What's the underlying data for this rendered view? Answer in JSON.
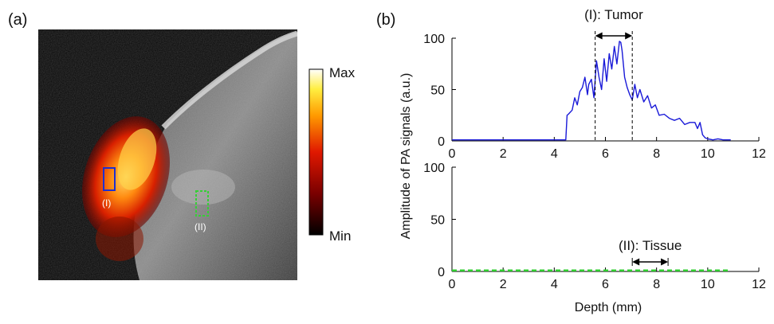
{
  "panel_a": {
    "label": "(a)",
    "colorbar": {
      "max_label": "Max",
      "min_label": "Min"
    },
    "roi_1": {
      "label": "(I)",
      "color": "#1f2fd0"
    },
    "roi_2": {
      "label": "(II)",
      "color": "#35d035"
    }
  },
  "panel_b": {
    "label": "(b)",
    "ylabel": "Amplitude of PA signals (a.u.)",
    "xlabel": "Depth (mm)"
  },
  "chart_data": [
    {
      "type": "line",
      "subplot": "top",
      "xlim": [
        0,
        12
      ],
      "ylim": [
        0,
        100
      ],
      "xticks": [
        0,
        2,
        4,
        6,
        8,
        10,
        12
      ],
      "yticks": [
        0,
        50,
        100
      ],
      "annotation": {
        "text": "(I): Tumor",
        "x_start": 5.6,
        "x_end": 7.05
      },
      "series": [
        {
          "color": "#1a1ad8",
          "x": [
            0,
            4.45,
            4.5,
            4.55,
            4.7,
            4.8,
            4.9,
            5.0,
            5.1,
            5.2,
            5.3,
            5.35,
            5.45,
            5.55,
            5.65,
            5.75,
            5.85,
            5.95,
            6.05,
            6.15,
            6.25,
            6.35,
            6.45,
            6.55,
            6.6,
            6.65,
            6.75,
            6.85,
            6.95,
            7.05,
            7.15,
            7.25,
            7.35,
            7.5,
            7.65,
            7.8,
            7.95,
            8.1,
            8.3,
            8.5,
            8.7,
            8.9,
            9.1,
            9.3,
            9.5,
            9.6,
            9.7,
            9.8,
            9.9,
            10.0,
            10.2,
            10.4,
            10.6,
            10.9
          ],
          "y": [
            1,
            1,
            25,
            26,
            30,
            42,
            35,
            48,
            52,
            62,
            45,
            55,
            60,
            42,
            78,
            62,
            50,
            80,
            58,
            85,
            70,
            92,
            75,
            97,
            96,
            88,
            62,
            52,
            45,
            40,
            55,
            42,
            50,
            38,
            44,
            32,
            35,
            25,
            26,
            22,
            20,
            22,
            16,
            18,
            18,
            12,
            18,
            6,
            3,
            2,
            1,
            2,
            1,
            1
          ]
        }
      ]
    },
    {
      "type": "line",
      "subplot": "bottom",
      "xlim": [
        0,
        12
      ],
      "ylim": [
        0,
        100
      ],
      "xticks": [
        0,
        2,
        4,
        6,
        8,
        10,
        12
      ],
      "yticks": [
        0,
        50,
        100
      ],
      "xlabel": "Depth (mm)",
      "annotation": {
        "text": "(II): Tissue",
        "x_start": 7.05,
        "x_end": 8.45
      },
      "series": [
        {
          "color": "#2ecc2e",
          "dashed": true,
          "x": [
            0,
            10.9
          ],
          "y": [
            1,
            1
          ]
        }
      ]
    }
  ]
}
